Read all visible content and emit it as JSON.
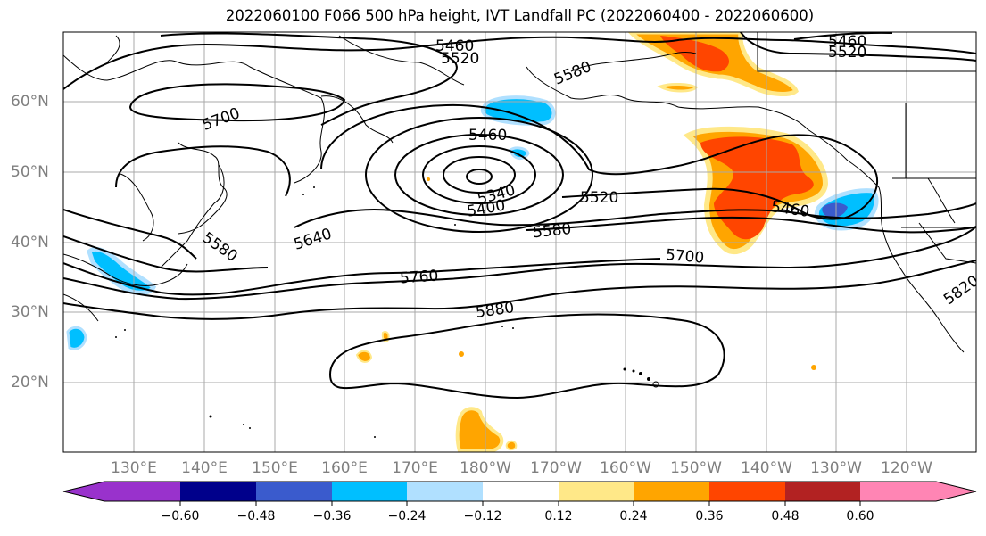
{
  "title": "2022060100 F066 500 hPa height, IVT Landfall PC (2022060400 - 2022060600)",
  "latitude_labels": [
    "60°N",
    "50°N",
    "40°N",
    "30°N",
    "20°N"
  ],
  "longitude_labels": [
    "130°E",
    "140°E",
    "150°E",
    "160°E",
    "170°E",
    "180°W",
    "170°W",
    "160°W",
    "150°W",
    "140°W",
    "130°W",
    "120°W"
  ],
  "contour_labels": [
    "5460",
    "5520",
    "5580",
    "5700",
    "5460",
    "5460",
    "5340",
    "5400",
    "5520",
    "5580",
    "5640",
    "5580",
    "5460",
    "5700",
    "5760",
    "5880",
    "5820",
    "5460",
    "5520"
  ],
  "colorbar": {
    "tick_labels": [
      "−0.60",
      "−0.48",
      "−0.36",
      "−0.24",
      "−0.12",
      "0.12",
      "0.24",
      "0.36",
      "0.48",
      "0.60"
    ],
    "bins": [
      {
        "color": "#9932cc"
      },
      {
        "color": "#00008b"
      },
      {
        "color": "#3a5bcd"
      },
      {
        "color": "#00bfff"
      },
      {
        "color": "#b0e0ff"
      },
      {
        "color": "#ffffff"
      },
      {
        "color": "#ffe888"
      },
      {
        "color": "#ffa500"
      },
      {
        "color": "#ff4500"
      },
      {
        "color": "#b22222"
      },
      {
        "color": "#ff85b4"
      }
    ]
  }
}
